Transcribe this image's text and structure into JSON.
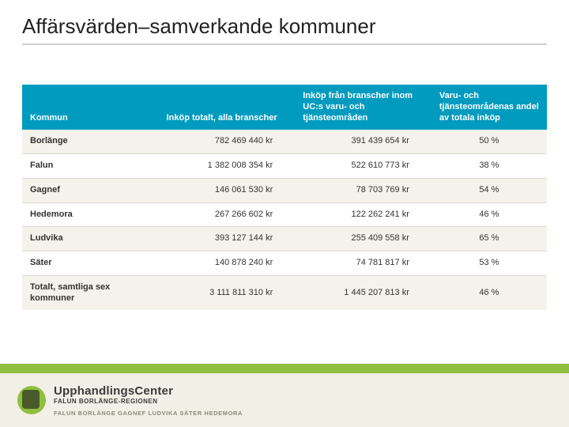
{
  "title": "Affärsvärden–samverkande kommuner",
  "title_color": "#222222",
  "title_fontsize": 26,
  "title_underline_color": "#cfcfcf",
  "slide_background": "#ffffff",
  "table": {
    "type": "table",
    "header_bg": "#009bbf",
    "header_text_color": "#ffffff",
    "row_border_color": "#d9d9d9",
    "row_bg_alt": "#f4f2ea",
    "row_bg": "#ffffff",
    "cell_fontsize": 11,
    "col_align": [
      "left",
      "right",
      "right",
      "center"
    ],
    "col_widths_pct": [
      26,
      26,
      26,
      22
    ],
    "columns": [
      "Kommun",
      "Inköp totalt, alla branscher",
      "Inköp från branscher inom UC:s varu- och tjänsteområden",
      "Varu- och tjänsteområdenas andel av totala inköp"
    ],
    "rows": [
      {
        "label": "Borlänge",
        "total": "782 469 440 kr",
        "uc": "391 439 654 kr",
        "share": "50 %"
      },
      {
        "label": "Falun",
        "total": "1 382 008 354 kr",
        "uc": "522 610 773 kr",
        "share": "38 %"
      },
      {
        "label": "Gagnef",
        "total": "146 061 530 kr",
        "uc": "78 703 769 kr",
        "share": "54 %"
      },
      {
        "label": "Hedemora",
        "total": "267 266 602 kr",
        "uc": "122 262 241 kr",
        "share": "46 %"
      },
      {
        "label": "Ludvika",
        "total": "393 127 144 kr",
        "uc": "255 409 558 kr",
        "share": "65 %"
      },
      {
        "label": "Säter",
        "total": "140 878 240 kr",
        "uc": "74 781 817 kr",
        "share": "53 %"
      },
      {
        "label": "Totalt, samtliga sex kommuner",
        "total": "3 111 811 310 kr",
        "uc": "1 445 207 813 kr",
        "share": "46 %"
      }
    ]
  },
  "footer": {
    "band_color": "#8fbf3f",
    "panel_bg": "#f2efe6",
    "logo_circle_color": "#8fbf3f",
    "logo_inner_color": "#4a5a2a",
    "brand_main": "UpphandlingsCenter",
    "brand_sub": "FALUN BORLÄNGE-REGIONEN",
    "brand_line": "FALUN BORLÄNGE GAGNEF LUDVIKA SÄTER HEDEMORA",
    "brand_text_color": "#3a3a3a",
    "brand_line_color": "#8a8a7a"
  }
}
